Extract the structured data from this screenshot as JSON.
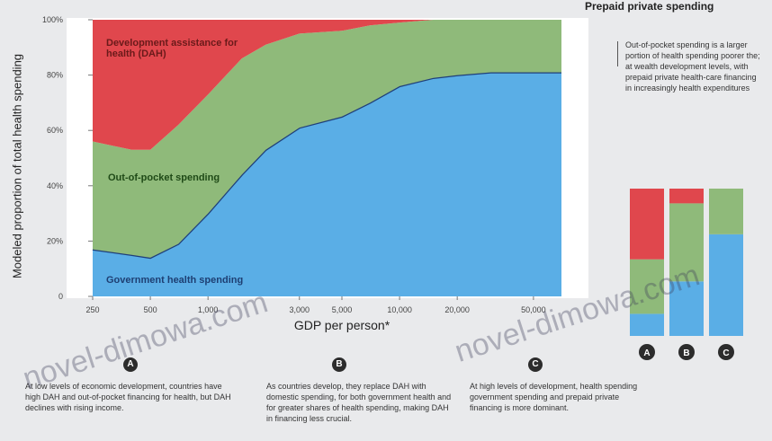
{
  "chart_data": {
    "type": "area",
    "stacked": true,
    "ylabel": "Modeled proportion of total health spending",
    "xlabel": "GDP per person*",
    "x_scale": "log",
    "x": [
      250,
      400,
      500,
      700,
      1000,
      1500,
      2000,
      3000,
      5000,
      7000,
      10000,
      15000,
      20000,
      30000,
      50000,
      70000
    ],
    "x_ticks": [
      "250",
      "500",
      "1,000",
      "3,000",
      "5,000",
      "10,000",
      "20,000",
      "50,000"
    ],
    "ylim": [
      0,
      100
    ],
    "y_ticks": [
      "0",
      "20%",
      "40%",
      "60%",
      "80%",
      "100%"
    ],
    "grid": false,
    "series": [
      {
        "name": "Government health spending",
        "color": "#5aaee6",
        "values": [
          17,
          15,
          14,
          19,
          30,
          44,
          53,
          61,
          65,
          70,
          76,
          79,
          80,
          81,
          81,
          81
        ]
      },
      {
        "name": "Out-of-pocket spending",
        "color": "#8fba7a",
        "values": [
          39,
          38,
          39,
          43,
          43,
          42,
          38,
          34,
          31,
          28,
          23,
          21,
          20,
          19,
          19,
          19
        ]
      },
      {
        "name": "Development assistance for health (DAH)",
        "color": "#e0474d",
        "values": [
          44,
          47,
          47,
          38,
          27,
          14,
          9,
          5,
          4,
          2,
          1,
          0,
          0,
          0,
          0,
          0
        ]
      }
    ],
    "series_labels": [
      "Development assistance for health (DAH)",
      "Out-of-pocket spending",
      "Government health spending"
    ]
  },
  "side_legend": {
    "title": "Prepaid private spending",
    "description": "Out-of-pocket spending is a larger portion of health spending poorer the; at wealth development levels, with prepaid private health-care financing in increasingly health expenditures"
  },
  "mini_bars": {
    "labels": [
      "A",
      "B",
      "C"
    ],
    "bars": [
      {
        "government": 15,
        "out_of_pocket": 37,
        "dah": 48
      },
      {
        "government": 37,
        "out_of_pocket": 53,
        "dah": 10
      },
      {
        "government": 69,
        "out_of_pocket": 31,
        "dah": 0
      }
    ]
  },
  "annotations": [
    {
      "marker": "A",
      "text": "At low levels of economic development, countries have high DAH and out-of-pocket financing for health, but DAH declines with rising income."
    },
    {
      "marker": "B",
      "text": "As countries develop, they replace DAH with domestic spending, for both government health and for greater shares of health spending, making DAH in financing less crucial."
    },
    {
      "marker": "C",
      "text": "At high levels of development, health spending government spending and prepaid private financing is more dominant."
    }
  ],
  "watermark": "novel-dimowa.com"
}
